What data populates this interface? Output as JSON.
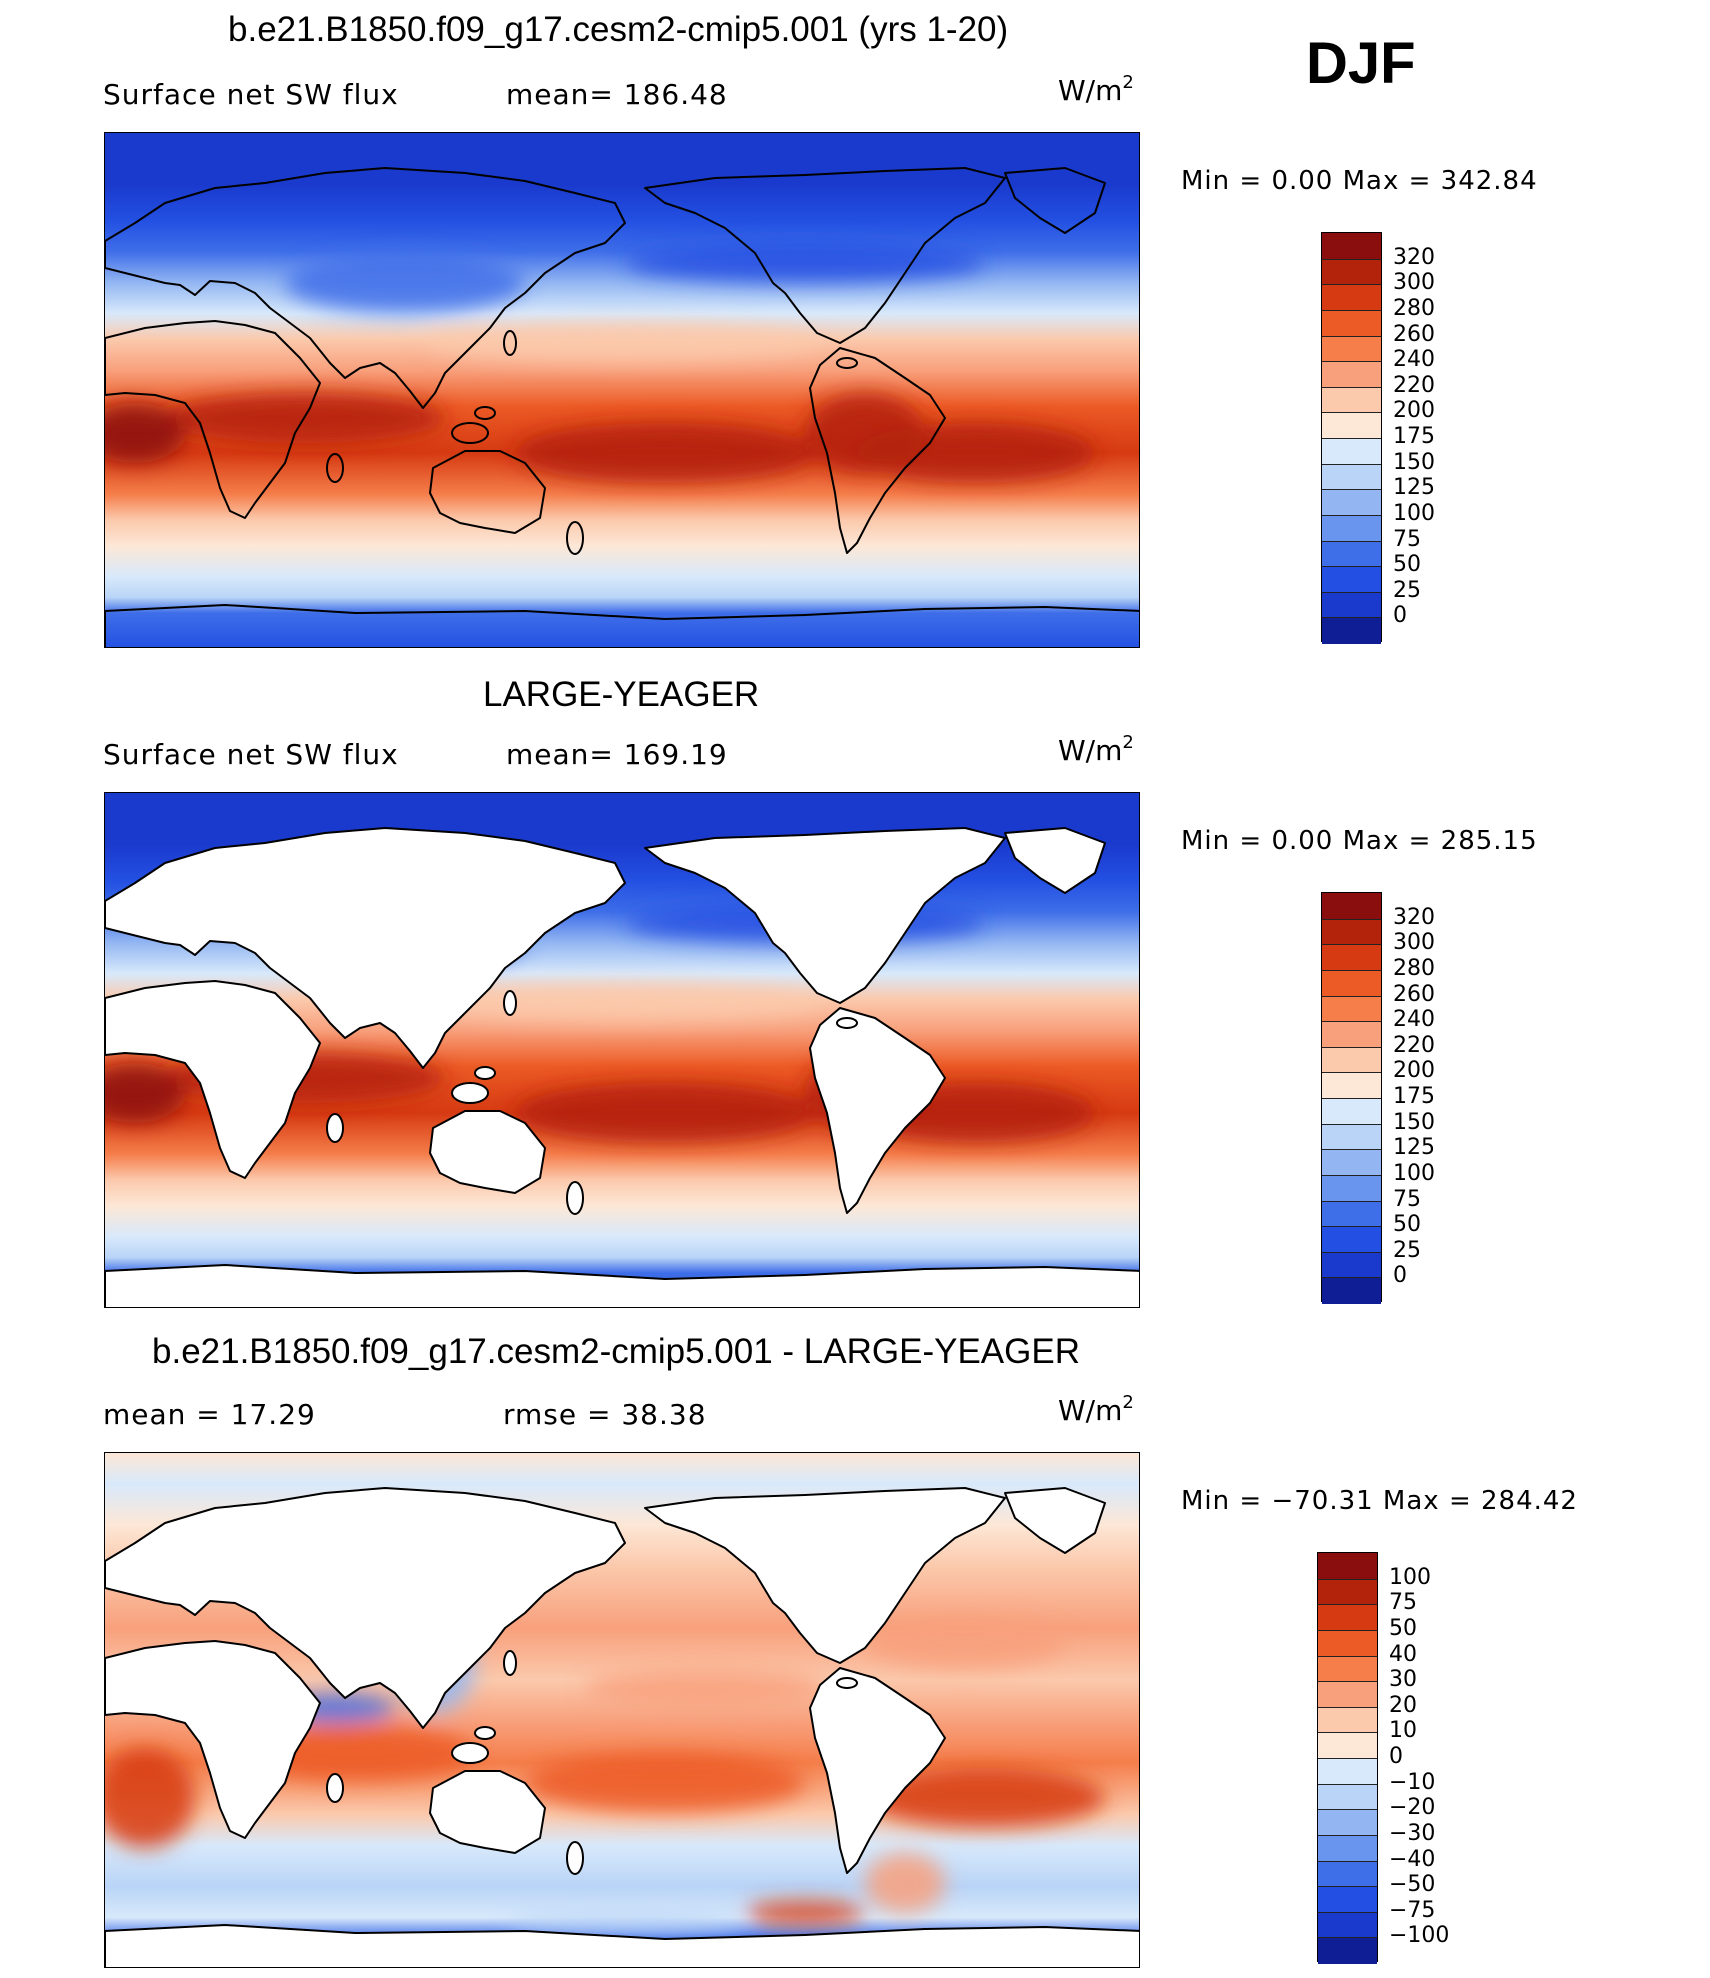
{
  "season": "DJF",
  "units_label": "W/m",
  "units_sup": "2",
  "panels": [
    {
      "title": "b.e21.B1850.f09_g17.cesm2-cmip5.001 (yrs 1-20)",
      "left_label": "Surface net SW flux",
      "right_label": "mean=  186.48",
      "minmax": "Min  =     0.00  Max  =  342.84",
      "land": "filled",
      "colorbar_levels": [
        "320",
        "300",
        "280",
        "260",
        "240",
        "220",
        "200",
        "175",
        "150",
        "125",
        "100",
        "75",
        "50",
        "25",
        "0"
      ],
      "colorbar_colors": [
        "#8a0e0e",
        "#b3220a",
        "#d63a12",
        "#ec5a25",
        "#f57e4b",
        "#f8a07c",
        "#fbc9ac",
        "#fde7d6",
        "#d8e9fb",
        "#b9d4f7",
        "#93b6f2",
        "#6a95ee",
        "#3f6ee9",
        "#2350e2",
        "#1a3acd",
        "#0f1e95"
      ]
    },
    {
      "title": "LARGE-YEAGER",
      "left_label": "Surface net SW flux",
      "right_label": "mean=  169.19",
      "minmax": "Min  =     0.00  Max  =  285.15",
      "land": "white",
      "colorbar_levels": [
        "320",
        "300",
        "280",
        "260",
        "240",
        "220",
        "200",
        "175",
        "150",
        "125",
        "100",
        "75",
        "50",
        "25",
        "0"
      ],
      "colorbar_colors": [
        "#8a0e0e",
        "#b3220a",
        "#d63a12",
        "#ec5a25",
        "#f57e4b",
        "#f8a07c",
        "#fbc9ac",
        "#fde7d6",
        "#d8e9fb",
        "#b9d4f7",
        "#93b6f2",
        "#6a95ee",
        "#3f6ee9",
        "#2350e2",
        "#1a3acd",
        "#0f1e95"
      ]
    },
    {
      "title": "b.e21.B1850.f09_g17.cesm2-cmip5.001 - LARGE-YEAGER",
      "left_label": "mean  =    17.29",
      "right_label": "rmse  =    38.38",
      "minmax": "Min  = −70.31  Max  =  284.42",
      "land": "white",
      "colorbar_levels": [
        "100",
        "75",
        "50",
        "40",
        "30",
        "20",
        "10",
        "0",
        "−10",
        "−20",
        "−30",
        "−40",
        "−50",
        "−75",
        "−100"
      ],
      "colorbar_colors": [
        "#8a0e0e",
        "#b3220a",
        "#d63a12",
        "#ec5a25",
        "#f57e4b",
        "#f8a07c",
        "#fbc9ac",
        "#fde7d6",
        "#d8e9fb",
        "#b9d4f7",
        "#93b6f2",
        "#6a95ee",
        "#3f6ee9",
        "#2350e2",
        "#1a3acd",
        "#0f1e95"
      ]
    }
  ],
  "chart_data": [
    {
      "type": "heatmap",
      "title": "b.e21.B1850.f09_g17.cesm2-cmip5.001 (yrs 1-20)",
      "variable": "Surface net SW flux",
      "units": "W/m2",
      "season": "DJF",
      "mean": 186.48,
      "min": 0.0,
      "max": 342.84,
      "contour_levels": [
        0,
        25,
        50,
        75,
        100,
        125,
        150,
        175,
        200,
        220,
        240,
        260,
        280,
        300,
        320
      ]
    },
    {
      "type": "heatmap",
      "title": "LARGE-YEAGER",
      "variable": "Surface net SW flux",
      "units": "W/m2",
      "season": "DJF",
      "mean": 169.19,
      "min": 0.0,
      "max": 285.15,
      "contour_levels": [
        0,
        25,
        50,
        75,
        100,
        125,
        150,
        175,
        200,
        220,
        240,
        260,
        280,
        300,
        320
      ]
    },
    {
      "type": "heatmap",
      "title": "b.e21.B1850.f09_g17.cesm2-cmip5.001 - LARGE-YEAGER",
      "units": "W/m2",
      "season": "DJF",
      "mean": 17.29,
      "rmse": 38.38,
      "min": -70.31,
      "max": 284.42,
      "contour_levels": [
        -100,
        -75,
        -50,
        -40,
        -30,
        -20,
        -10,
        0,
        10,
        20,
        30,
        40,
        50,
        75,
        100
      ]
    }
  ]
}
